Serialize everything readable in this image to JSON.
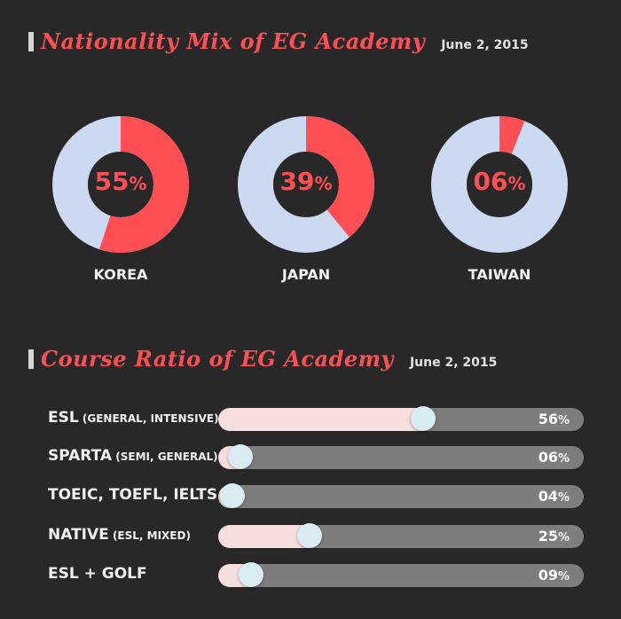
{
  "nationality_section": {
    "title": "Nationality Mix of EG Academy",
    "date": "June 2, 2015"
  },
  "course_section": {
    "title": "Course Ratio of EG Academy",
    "date": "June 2, 2015"
  },
  "colors": {
    "accent": "#ff4f55",
    "donut_base": "#cbd9f1",
    "bar_fill": "#f7dedf",
    "bar_track": "#7d7d7d",
    "knob": "#d9ecf2"
  },
  "chart_data": [
    {
      "type": "pie",
      "variant": "donut",
      "categories": [
        "KOREA",
        "JAPAN",
        "TAIWAN"
      ],
      "values": [
        55,
        39,
        6
      ],
      "value_labels": [
        "55",
        "39",
        "06"
      ],
      "unit": "%"
    },
    {
      "type": "bar",
      "orientation": "horizontal",
      "categories": [
        {
          "main": "ESL",
          "sub": "(GENERAL, INTENSIVE)"
        },
        {
          "main": "SPARTA",
          "sub": "(SEMI, GENERAL)"
        },
        {
          "main": "TOEIC, TOEFL, IELTS",
          "sub": ""
        },
        {
          "main": "NATIVE",
          "sub": "(ESL, MIXED)"
        },
        {
          "main": "ESL + GOLF",
          "sub": ""
        }
      ],
      "values": [
        56,
        6,
        4,
        25,
        9
      ],
      "value_labels": [
        "56",
        "06",
        "04",
        "25",
        "09"
      ],
      "unit": "%",
      "xlim": [
        0,
        100
      ]
    }
  ]
}
